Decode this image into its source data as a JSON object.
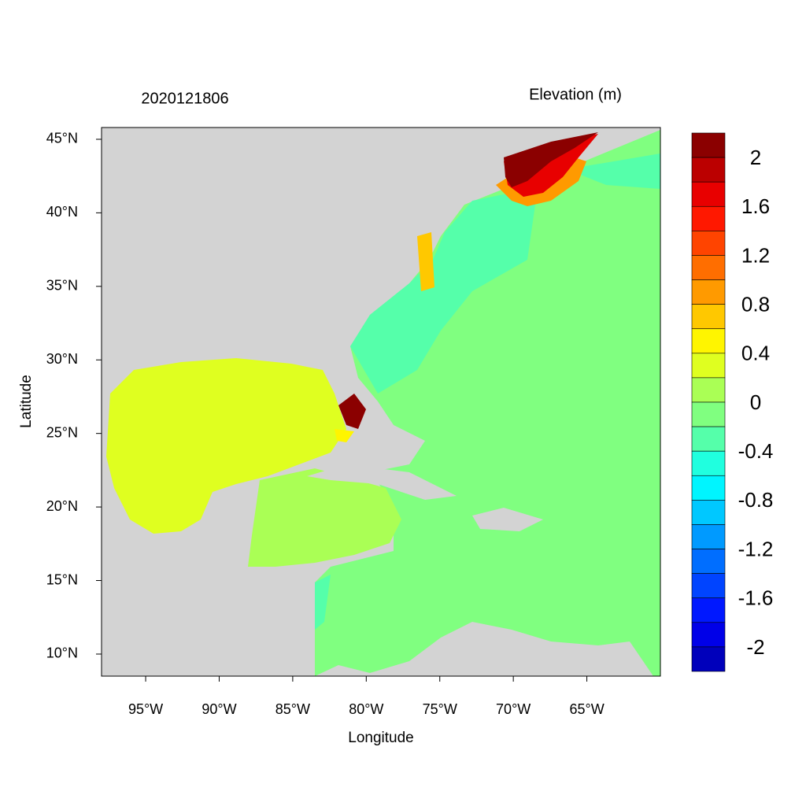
{
  "chart_data": {
    "type": "map",
    "title": "2020121806",
    "subtitle": "Elevation (m)",
    "x_label": "Longitude",
    "y_label": "Latitude",
    "xlim": [
      -98,
      -60
    ],
    "ylim": [
      8.5,
      45.8
    ],
    "xticks": [
      {
        "value": -95,
        "label": "95°W"
      },
      {
        "value": -90,
        "label": "90°W"
      },
      {
        "value": -85,
        "label": "85°W"
      },
      {
        "value": -80,
        "label": "80°W"
      },
      {
        "value": -75,
        "label": "75°W"
      },
      {
        "value": -70,
        "label": "70°W"
      },
      {
        "value": -65,
        "label": "65°W"
      }
    ],
    "yticks": [
      {
        "value": 10,
        "label": "10°N"
      },
      {
        "value": 15,
        "label": "15°N"
      },
      {
        "value": 20,
        "label": "20°N"
      },
      {
        "value": 25,
        "label": "25°N"
      },
      {
        "value": 30,
        "label": "30°N"
      },
      {
        "value": 35,
        "label": "35°N"
      },
      {
        "value": 40,
        "label": "40°N"
      },
      {
        "value": 45,
        "label": "45°N"
      }
    ],
    "colorbar": {
      "levels": [
        2,
        1.8,
        1.6,
        1.4,
        1.2,
        1,
        0.8,
        0.6,
        0.4,
        0.2,
        0,
        -0.2,
        -0.4,
        -0.6,
        -0.8,
        -1,
        -1.2,
        -1.4,
        -1.6,
        -1.8,
        -2
      ],
      "ticks": [
        2,
        1.6,
        1.2,
        0.8,
        0.4,
        0,
        -0.4,
        -0.8,
        -1.2,
        -1.6,
        -2
      ],
      "colors": [
        "#8b0000",
        "#bb0000",
        "#e80000",
        "#ff1800",
        "#ff4400",
        "#ff6e00",
        "#ff9a00",
        "#ffc800",
        "#fff500",
        "#dfff20",
        "#aaff55",
        "#80ff80",
        "#55ffaa",
        "#20ffdf",
        "#00f5ff",
        "#00c8ff",
        "#009aff",
        "#006eff",
        "#0044ff",
        "#0018ff",
        "#0000e8",
        "#0000bb"
      ]
    }
  }
}
